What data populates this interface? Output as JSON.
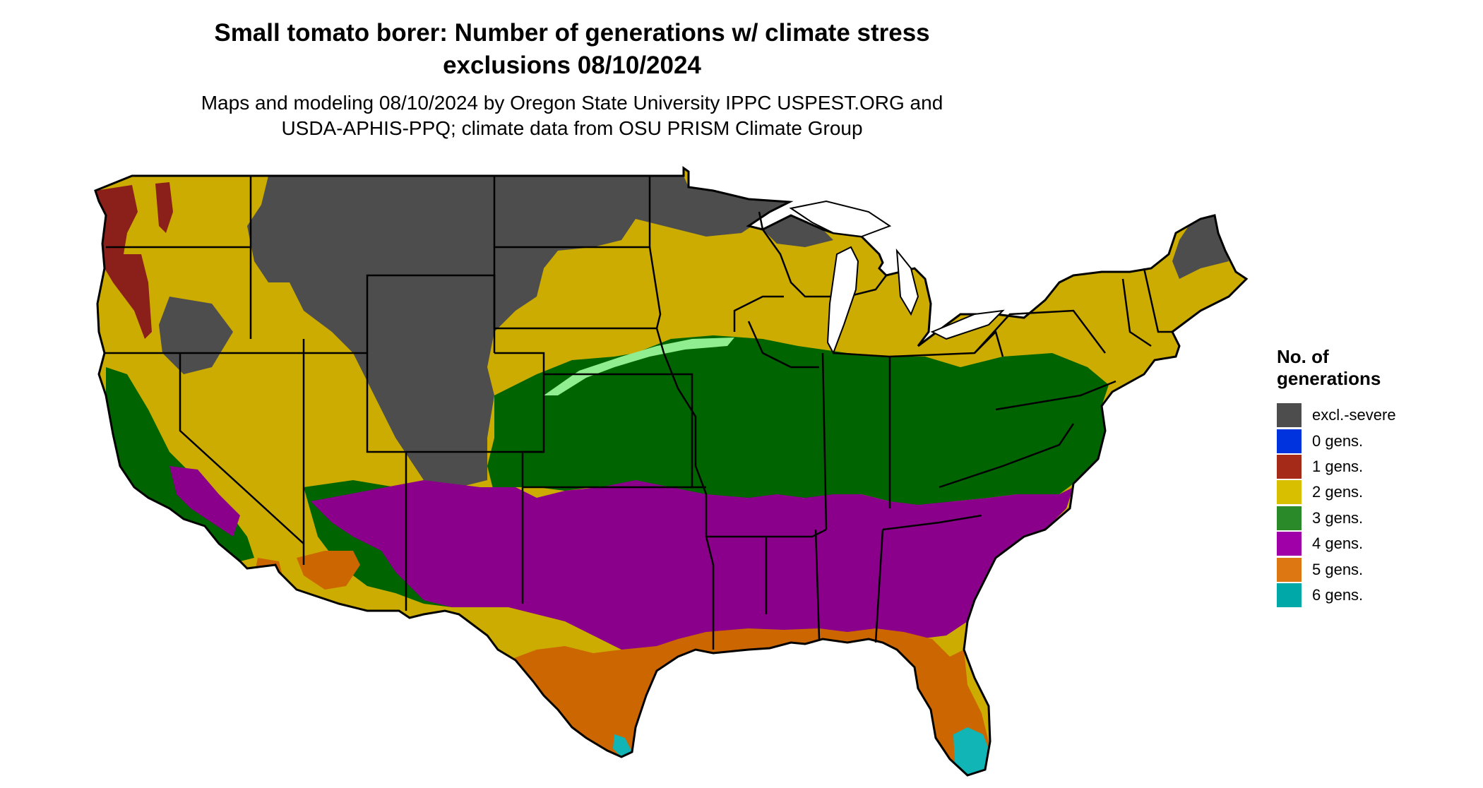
{
  "title_lines": [
    "Small tomato borer: Number of generations w/ climate stress",
    "exclusions 08/10/2024"
  ],
  "subtitle_lines": [
    "Maps and modeling 08/10/2024 by Oregon State University IPPC USPEST.ORG and",
    "USDA-APHIS-PPQ; climate data from OSU PRISM Climate Group"
  ],
  "legend": {
    "title_lines": [
      "No. of",
      "generations"
    ],
    "items": [
      {
        "label": "excl.-severe",
        "color": "#4d4d4d"
      },
      {
        "label": "0 gens.",
        "color": "#0033dd"
      },
      {
        "label": "1 gens.",
        "color": "#a52a18"
      },
      {
        "label": "2 gens.",
        "color": "#d8c000"
      },
      {
        "label": "3 gens.",
        "color": "#2a8a2a"
      },
      {
        "label": "4 gens.",
        "color": "#a000a8"
      },
      {
        "label": "5 gens.",
        "color": "#dd7711"
      },
      {
        "label": "6 gens.",
        "color": "#00a8a8"
      }
    ]
  },
  "map_fill_colors": {
    "excl_severe": "#4d4d4d",
    "gen1": "#8b1f1a",
    "gen2": "#ccac00",
    "gen3": "#006400",
    "gen4": "#8b008b",
    "gen4_edge": "#dd00ee",
    "gen5": "#cc6600",
    "gen6": "#11b5b5",
    "transition": "#90ee90"
  }
}
